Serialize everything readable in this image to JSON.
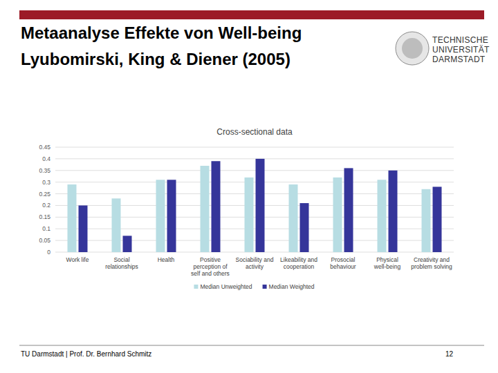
{
  "slide": {
    "title": [
      "Metaanalyse Effekte von Well-being",
      "Lyubomirski, King & Diener (2005)"
    ],
    "logo": [
      "TECHNISCHE",
      "UNIVERSITÄT",
      "DARMSTADT"
    ],
    "footer": "TU Darmstadt | Prof. Dr. Bernhard Schmitz",
    "page": "12"
  },
  "chart_data": {
    "type": "bar",
    "title": "Cross-sectional data",
    "categories": [
      "Work life",
      "Social relationships",
      "Health",
      "Positive perception of self and others",
      "Sociability and activity",
      "Likeability and cooperation",
      "Prosocial behaviour",
      "Physical well-being",
      "Creativity and problem solving"
    ],
    "series": [
      {
        "name": "Median Unweighted",
        "color": "#b7dde3",
        "values": [
          0.29,
          0.23,
          0.31,
          0.37,
          0.32,
          0.29,
          0.32,
          0.31,
          0.27
        ]
      },
      {
        "name": "Median Weighted",
        "color": "#35359a",
        "values": [
          0.2,
          0.07,
          0.31,
          0.39,
          0.4,
          0.21,
          0.36,
          0.35,
          0.28
        ]
      }
    ],
    "ylim": [
      0,
      0.45
    ],
    "yticks": [
      0,
      0.05,
      0.1,
      0.15,
      0.2,
      0.25,
      0.3,
      0.35,
      0.4,
      0.45
    ],
    "grid": true,
    "legend": "bottom"
  }
}
